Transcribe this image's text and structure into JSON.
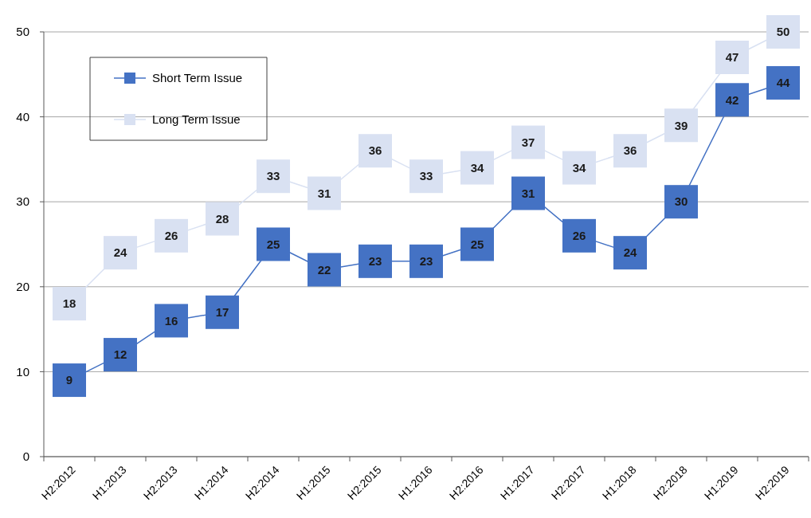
{
  "chart_data": {
    "type": "line",
    "categories": [
      "H2:2012",
      "H1:2013",
      "H2:2013",
      "H1:2014",
      "H2:2014",
      "H1:2015",
      "H2:2015",
      "H1:2016",
      "H2:2016",
      "H1:2017",
      "H2:2017",
      "H1:2018",
      "H2:2018",
      "H1:2019",
      "H2:2019"
    ],
    "series": [
      {
        "name": "Short Term Issue",
        "color": "#4472c4",
        "values": [
          9,
          12,
          16,
          17,
          25,
          22,
          23,
          23,
          25,
          31,
          26,
          24,
          30,
          42,
          44
        ]
      },
      {
        "name": "Long Term Issue",
        "color": "#d9e1f2",
        "values": [
          18,
          24,
          26,
          28,
          33,
          31,
          36,
          33,
          34,
          37,
          34,
          36,
          39,
          47,
          50
        ]
      }
    ],
    "ylim": [
      0,
      50
    ],
    "yticks": [
      0,
      10,
      20,
      30,
      40,
      50
    ],
    "grid": "y",
    "legend": "top left",
    "marker": "square",
    "data_labels": true
  }
}
